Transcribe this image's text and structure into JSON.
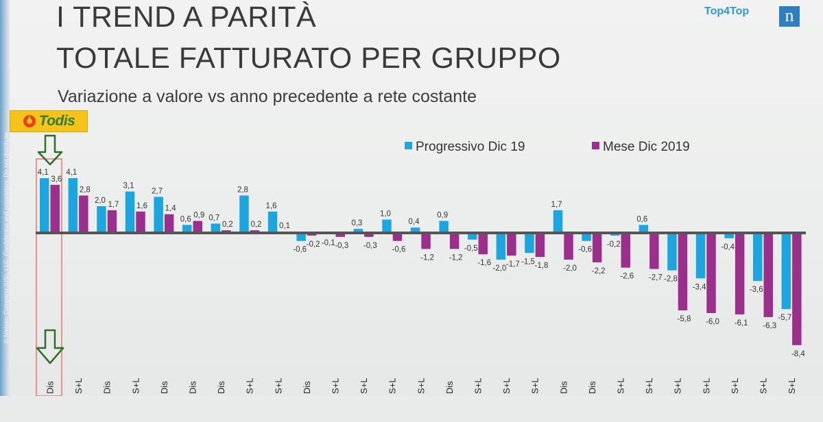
{
  "header": {
    "title_line1": "I TREND A PARITÀ",
    "title_line2": "TOTALE FATTURATO PER GRUPPO",
    "subtitle": "Variazione a valore vs anno precedente a rete costante",
    "brand_text": "Top4Top",
    "brand_logo": "n",
    "highlight_logo": "Todis",
    "copyright": "© Nielsen Company (US), LLC. Confidential and proprietary. Do not distribute."
  },
  "colors": {
    "series1": "#1ba6e0",
    "series2": "#9c2f8b",
    "axis": "#555555",
    "highlight_box": "#e07a6b",
    "arrow": "#2f6b2a"
  },
  "chart_data": {
    "type": "bar",
    "subtitle": "Variazione a valore vs anno precedente a rete costante",
    "legend_position": "top-right",
    "categories": [
      "Dis",
      "S+L",
      "Dis",
      "S+L",
      "Dis",
      "Dis",
      "Dis",
      "S+L",
      "S+L",
      "Dis",
      "S+L",
      "S+L",
      "S+L",
      "S+L",
      "Dis",
      "S+L",
      "S+L",
      "S+L",
      "Dis",
      "Dis",
      "S+L",
      "S+L",
      "S+L",
      "S+L",
      "S+L",
      "S+L",
      "S+L"
    ],
    "series": [
      {
        "name": "Progressivo Dic 19",
        "values": [
          4.1,
          4.1,
          2.0,
          3.1,
          2.7,
          0.6,
          0.7,
          2.8,
          1.6,
          -0.6,
          -0.1,
          0.3,
          1.0,
          0.4,
          0.9,
          -0.5,
          -2.0,
          -1.5,
          1.7,
          -0.6,
          -0.2,
          0.6,
          -2.8,
          -3.4,
          -0.4,
          -3.6,
          -5.7
        ],
        "labels": [
          "4,1",
          "4,1",
          "2,0",
          "3,1",
          "2,7",
          "0,6",
          "0,7",
          "2,8",
          "1,6",
          "-0,6",
          "-0,1",
          "0,3",
          "1,0",
          "0,4",
          "0,9",
          "-0,5",
          "-2,0",
          "-1,5",
          "1,7",
          "-0,6",
          "-0,2",
          "0,6",
          "-2,8",
          "-3,4",
          "-0,4",
          "-3,6",
          "-5,7"
        ]
      },
      {
        "name": "Mese Dic 2019",
        "values": [
          3.6,
          2.8,
          1.7,
          1.6,
          1.4,
          0.9,
          0.2,
          0.2,
          0.1,
          -0.2,
          -0.3,
          -0.3,
          -0.6,
          -1.2,
          -1.2,
          -1.6,
          -1.7,
          -1.8,
          -2.0,
          -2.2,
          -2.6,
          -2.7,
          -5.8,
          -6.0,
          -6.1,
          -6.3,
          -8.4
        ],
        "labels": [
          "3,6",
          "2,8",
          "1,7",
          "1,6",
          "1,4",
          "0,9",
          "0,2",
          "0,2",
          "0,1",
          "-0,2",
          "-0,3",
          "-0,3",
          "-0,6",
          "-1,2",
          "-1,2",
          "-1,6",
          "-1,7",
          "-1,8",
          "-2,0",
          "-2,2",
          "-2,6",
          "-2,7",
          "-5,8",
          "-6,0",
          "-6,1",
          "-6,3",
          "-8,4"
        ]
      }
    ],
    "ylim": [
      -8.4,
      4.1
    ],
    "grid": false,
    "highlighted_category": "Dis"
  }
}
